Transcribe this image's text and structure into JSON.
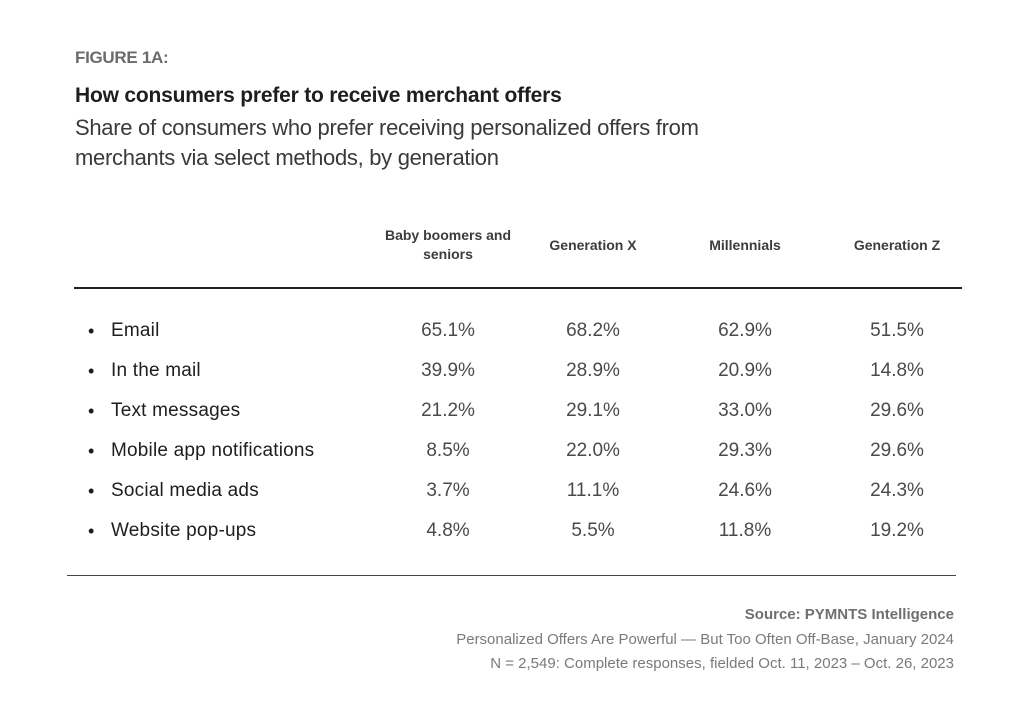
{
  "figure_label": "FIGURE 1A:",
  "title": "How consumers prefer to receive merchant offers",
  "subtitle": "Share of consumers who prefer receiving personalized offers from merchants via select methods, by generation",
  "source": {
    "line1": "Source: PYMNTS Intelligence",
    "line2": "Personalized Offers Are Powerful — But Too Often Off-Base, January 2024",
    "line3": "N = 2,549: Complete responses, fielded Oct. 11, 2023 – Oct. 26, 2023"
  },
  "chart_data": {
    "type": "table",
    "title": "How consumers prefer to receive merchant offers",
    "subtitle": "Share of consumers who prefer receiving personalized offers from merchants via select methods, by generation",
    "columns": [
      "Baby boomers and seniors",
      "Generation X",
      "Millennials",
      "Generation Z"
    ],
    "rows": [
      {
        "label": "Email",
        "values": [
          "65.1%",
          "68.2%",
          "62.9%",
          "51.5%"
        ]
      },
      {
        "label": "In the mail",
        "values": [
          "39.9%",
          "28.9%",
          "20.9%",
          "14.8%"
        ]
      },
      {
        "label": "Text messages",
        "values": [
          "21.2%",
          "29.1%",
          "33.0%",
          "29.6%"
        ]
      },
      {
        "label": "Mobile app notifications",
        "values": [
          "8.5%",
          "22.0%",
          "29.3%",
          "29.6%"
        ]
      },
      {
        "label": "Social media ads",
        "values": [
          "3.7%",
          "11.1%",
          "24.6%",
          "24.3%"
        ]
      },
      {
        "label": "Website pop-ups",
        "values": [
          "4.8%",
          "5.5%",
          "11.8%",
          "19.2%"
        ]
      }
    ],
    "units": "percent"
  }
}
